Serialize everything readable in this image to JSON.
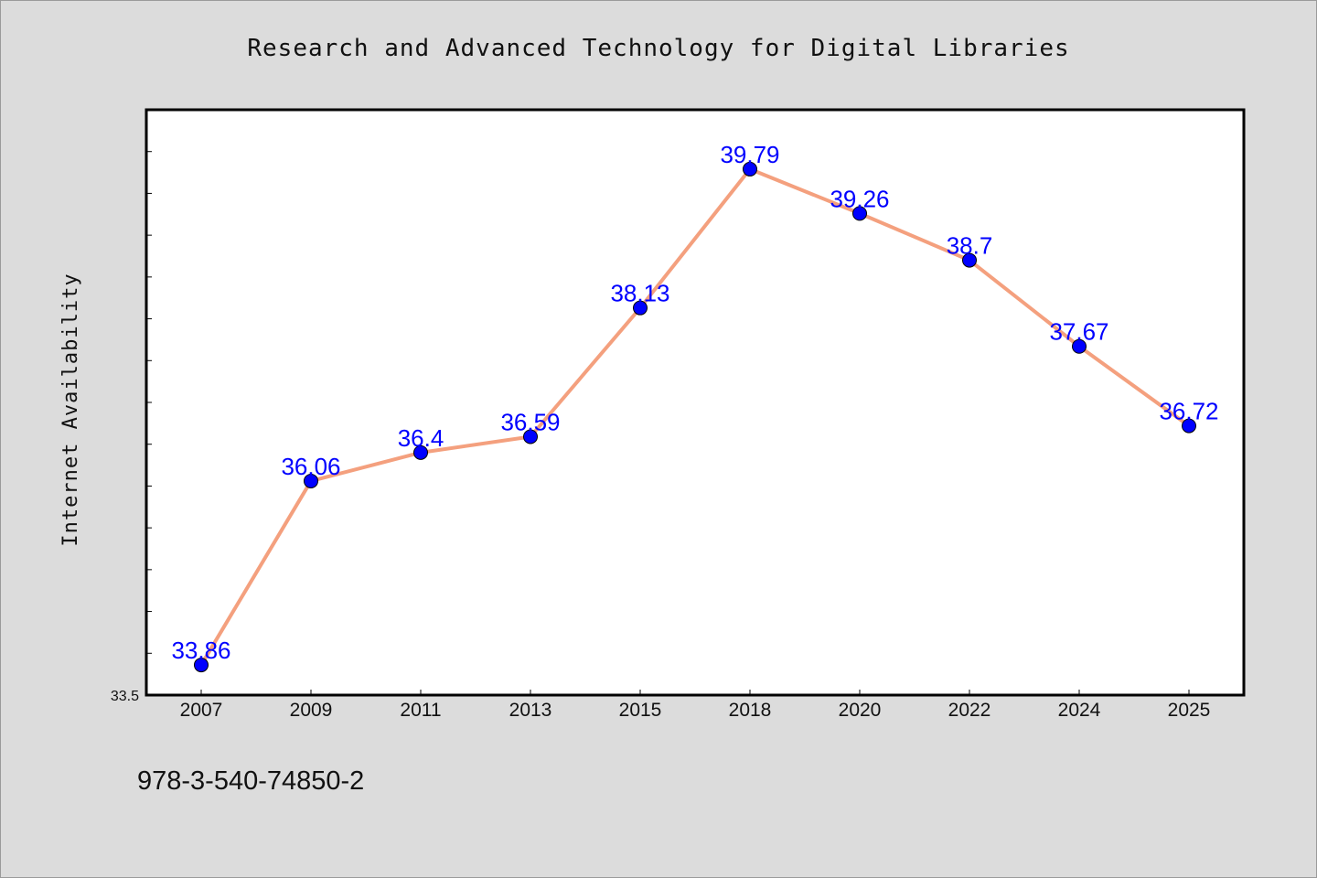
{
  "chart_data": {
    "type": "line",
    "title": "Research and Advanced Technology for Digital Libraries",
    "ylabel": "Internet Availability",
    "xlabel": "",
    "categories": [
      "2007",
      "2009",
      "2011",
      "2013",
      "2015",
      "2018",
      "2020",
      "2022",
      "2024",
      "2025"
    ],
    "values": [
      33.86,
      36.06,
      36.4,
      36.59,
      38.13,
      39.79,
      39.26,
      38.7,
      37.67,
      36.72
    ],
    "data_labels": [
      "33.86",
      "36.06",
      "36.4",
      "36.59",
      "38.13",
      "39.79",
      "39.26",
      "38.7",
      "37.67",
      "36.72"
    ],
    "ylim": [
      33.5,
      40.5
    ],
    "y_tick_labels": [
      "33.5"
    ],
    "grid": false,
    "line_color": "#f4a07e",
    "marker_color": "#0000ff",
    "label_color": "#0000ff"
  },
  "footer": {
    "isbn": "978-3-540-74850-2"
  }
}
